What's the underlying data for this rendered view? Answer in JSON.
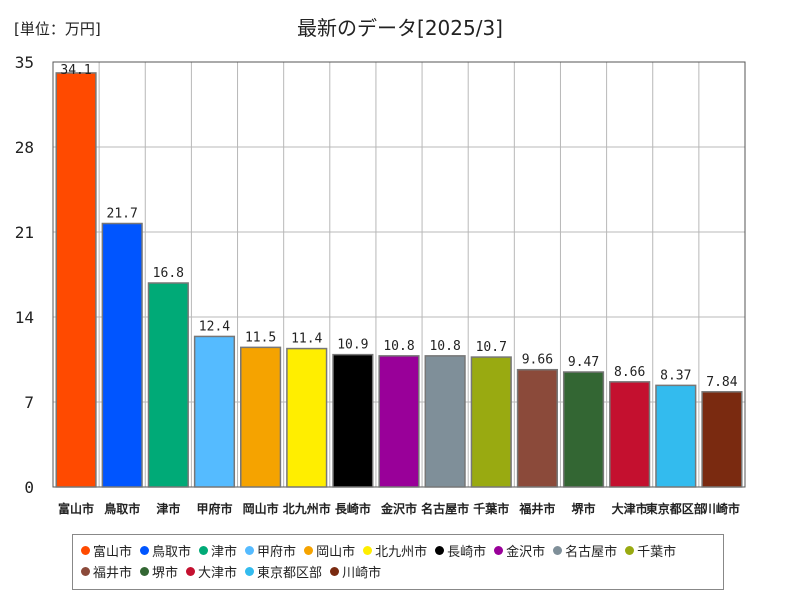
{
  "unit_label": "[単位：万円]",
  "chart_data": {
    "type": "bar",
    "title": "最新のデータ[2025/3]",
    "categories": [
      "富山市",
      "鳥取市",
      "津市",
      "甲府市",
      "岡山市",
      "北九州市",
      "長崎市",
      "金沢市",
      "名古屋市",
      "千葉市",
      "福井市",
      "堺市",
      "大津市",
      "東京都区部",
      "川崎市"
    ],
    "values": [
      34.1,
      21.7,
      16.8,
      12.4,
      11.5,
      11.4,
      10.9,
      10.8,
      10.8,
      10.7,
      9.66,
      9.47,
      8.66,
      8.37,
      7.84
    ],
    "value_labels": [
      "34.1",
      "21.7",
      "16.8",
      "12.4",
      "11.5",
      "11.4",
      "10.9",
      "10.8",
      "10.8",
      "10.7",
      "9.66",
      "9.47",
      "8.66",
      "8.37",
      "7.84"
    ],
    "colors": [
      "#ff4a00",
      "#0055ff",
      "#00aa77",
      "#55bbff",
      "#f5a300",
      "#ffee00",
      "#000000",
      "#990099",
      "#7f8f99",
      "#99aa11",
      "#8b4a3a",
      "#336633",
      "#c4102f",
      "#33bbee",
      "#7a2a10"
    ],
    "yticks": [
      0,
      7,
      14,
      21,
      28,
      35
    ],
    "ylim": [
      0,
      35
    ],
    "grid": true,
    "legend_position": "bottom"
  }
}
